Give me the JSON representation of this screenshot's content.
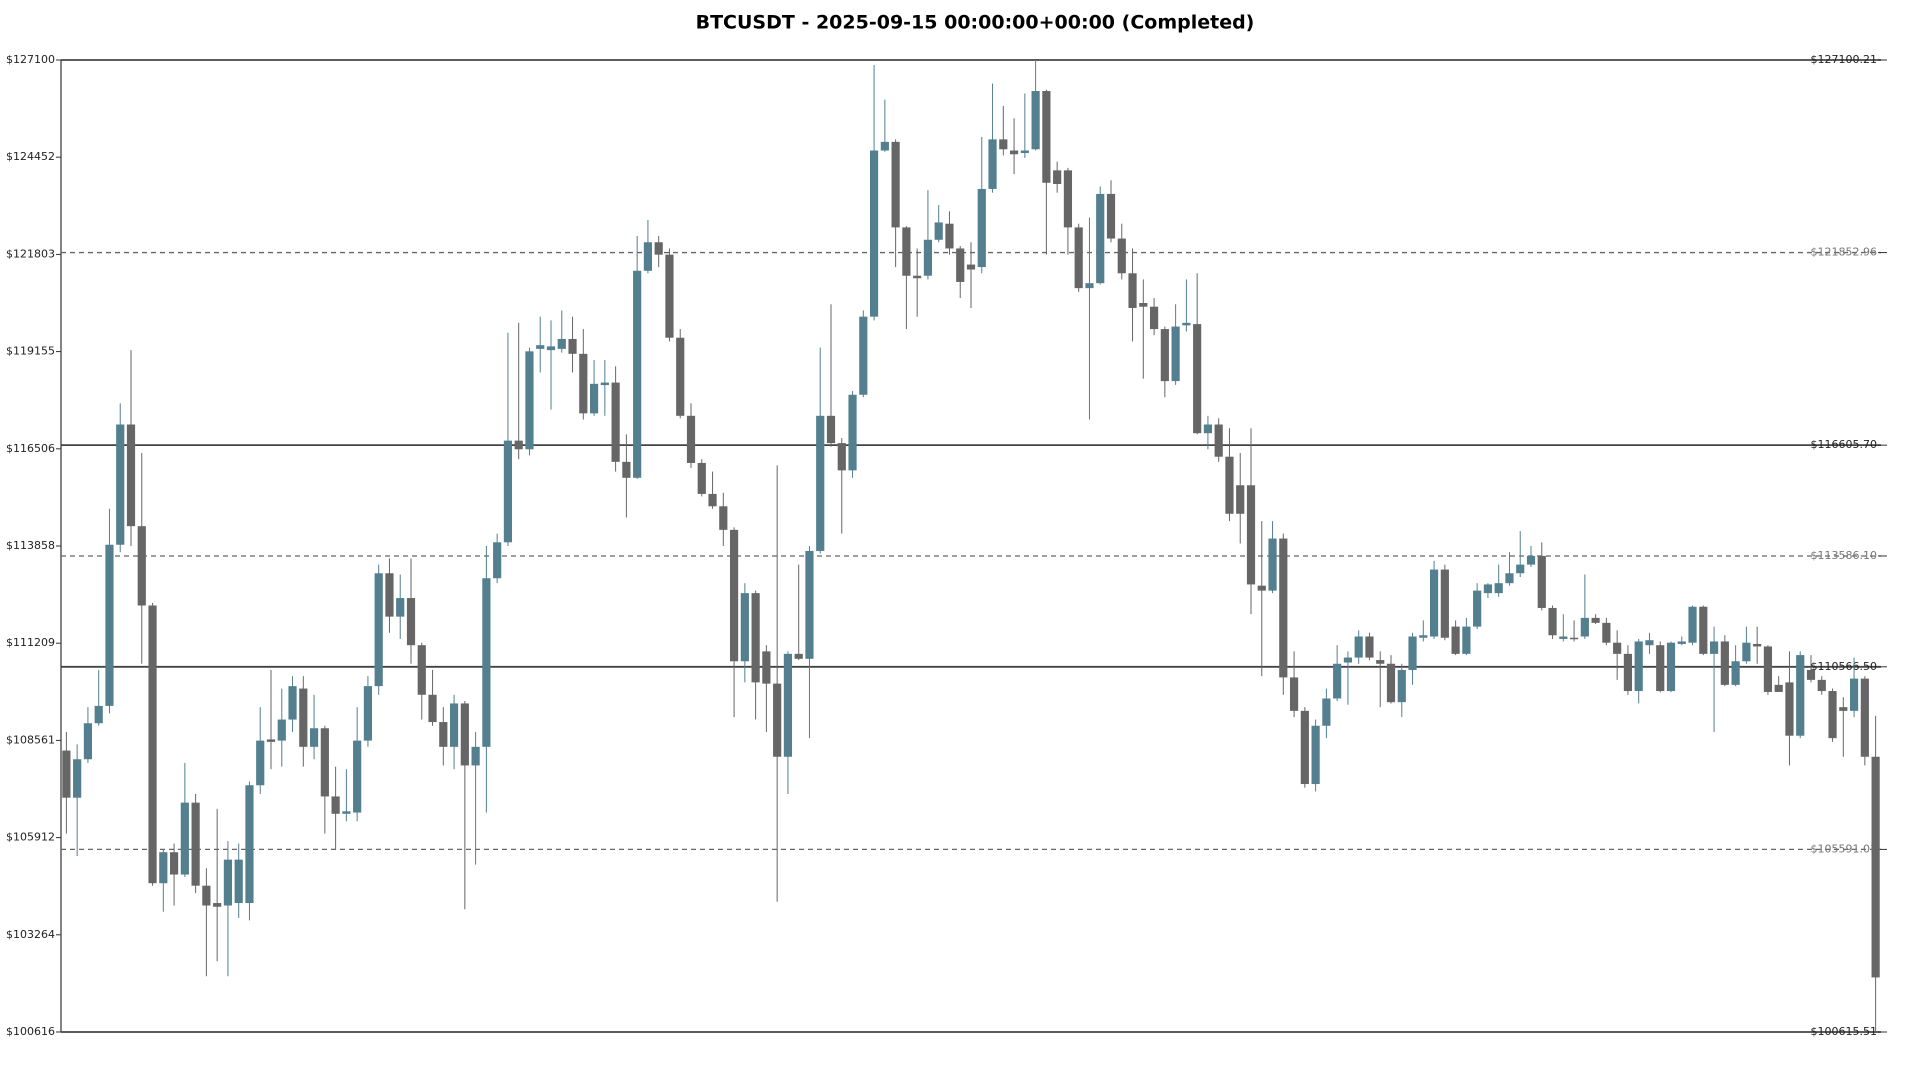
{
  "chart_data": {
    "type": "candlestick",
    "title": "BTCUSDT - 2025-09-15 00:00:00+00:00 (Completed)",
    "up_color": "#537f8f",
    "down_color": "#666666",
    "ylim": [
      100615.51,
      127100.21
    ],
    "yticks": [
      {
        "value": 127100,
        "label": "$127100"
      },
      {
        "value": 124452,
        "label": "$124452"
      },
      {
        "value": 121803,
        "label": "$121803"
      },
      {
        "value": 119155,
        "label": "$119155"
      },
      {
        "value": 116506,
        "label": "$116506"
      },
      {
        "value": 113858,
        "label": "$113858"
      },
      {
        "value": 111209,
        "label": "$111209"
      },
      {
        "value": 108561,
        "label": "$108561"
      },
      {
        "value": 105912,
        "label": "$105912"
      },
      {
        "value": 103264,
        "label": "$103264"
      },
      {
        "value": 100616,
        "label": "$100616"
      }
    ],
    "levels": [
      {
        "value": 127100.21,
        "label": "$127100.21",
        "style": "solid"
      },
      {
        "value": 121852.96,
        "label": "$121852.96",
        "style": "dashed"
      },
      {
        "value": 116605.7,
        "label": "$116605.70",
        "style": "solid"
      },
      {
        "value": 113586.1,
        "label": "$113586.10",
        "style": "dashed"
      },
      {
        "value": 110566.5,
        "label": "$110566.50",
        "style": "solid"
      },
      {
        "value": 105591.01,
        "label": "$105591.01",
        "style": "dashed"
      },
      {
        "value": 100615.51,
        "label": "$100615.51",
        "style": "solid"
      }
    ],
    "candles": [
      [
        108284,
        108791,
        106021,
        107000
      ],
      [
        107000,
        108453,
        105413,
        108048
      ],
      [
        108048,
        109467,
        107947,
        109028
      ],
      [
        109028,
        110480,
        108960,
        109501
      ],
      [
        109501,
        114872,
        109298,
        113892
      ],
      [
        113892,
        117743,
        113689,
        117168
      ],
      [
        117168,
        119195,
        113858,
        114398
      ],
      [
        114398,
        116391,
        110649,
        112237
      ],
      [
        112237,
        112305,
        104602,
        104670
      ],
      [
        104670,
        105582,
        103893,
        105514
      ],
      [
        105514,
        105751,
        104062,
        104906
      ],
      [
        104906,
        107946,
        104839,
        106865
      ],
      [
        106865,
        107102,
        104400,
        104602
      ],
      [
        104602,
        105075,
        102135,
        104062
      ],
      [
        104129,
        106696,
        102542,
        104028
      ],
      [
        104062,
        105818,
        102135,
        105312
      ],
      [
        104129,
        105751,
        103724,
        105312
      ],
      [
        104129,
        107440,
        103657,
        107339
      ],
      [
        107339,
        109467,
        107102,
        108555
      ],
      [
        108588,
        110480,
        107777,
        108521
      ],
      [
        108555,
        109974,
        107845,
        109129
      ],
      [
        109129,
        110311,
        108791,
        110040
      ],
      [
        109974,
        110311,
        107845,
        108386
      ],
      [
        108386,
        109804,
        108048,
        108892
      ],
      [
        108892,
        108960,
        106021,
        107034
      ],
      [
        107034,
        107845,
        105582,
        106561
      ],
      [
        106561,
        107777,
        106358,
        106629
      ],
      [
        106595,
        109467,
        106358,
        108555
      ],
      [
        108555,
        110311,
        108386,
        110040
      ],
      [
        110040,
        113351,
        109804,
        113115
      ],
      [
        113115,
        113520,
        111493,
        111933
      ],
      [
        111933,
        113081,
        111325,
        112439
      ],
      [
        112439,
        113520,
        110649,
        111155
      ],
      [
        111155,
        111223,
        109129,
        109804
      ],
      [
        109804,
        110480,
        108960,
        109061
      ],
      [
        109061,
        109467,
        107879,
        108386
      ],
      [
        108386,
        109804,
        107777,
        109568
      ],
      [
        109568,
        109636,
        103960,
        107879
      ],
      [
        107879,
        108791,
        105177,
        108386
      ],
      [
        108386,
        113858,
        106595,
        112980
      ],
      [
        112980,
        114196,
        112845,
        113959
      ],
      [
        113959,
        119668,
        113858,
        116729
      ],
      [
        116729,
        119938,
        116223,
        116493
      ],
      [
        116493,
        119263,
        116324,
        119162
      ],
      [
        119229,
        120107,
        118587,
        119330
      ],
      [
        119195,
        120006,
        117574,
        119297
      ],
      [
        119229,
        120276,
        119128,
        119499
      ],
      [
        119499,
        120107,
        118587,
        119094
      ],
      [
        119094,
        119769,
        117303,
        117472
      ],
      [
        117472,
        118925,
        117405,
        118277
      ],
      [
        118243,
        118925,
        117405,
        118311
      ],
      [
        118311,
        118756,
        115885,
        116151
      ],
      [
        116151,
        116898,
        114635,
        115716
      ],
      [
        115716,
        122303,
        115682,
        121357
      ],
      [
        121357,
        122742,
        121289,
        122134
      ],
      [
        122134,
        122303,
        121458,
        121796
      ],
      [
        121796,
        121965,
        119432,
        119533
      ],
      [
        119533,
        119769,
        117338,
        117405
      ],
      [
        117405,
        117743,
        115986,
        116121
      ],
      [
        116121,
        116223,
        115209,
        115277
      ],
      [
        115277,
        115885,
        114872,
        114940
      ],
      [
        114940,
        115310,
        113858,
        114298
      ],
      [
        114298,
        114366,
        109196,
        110717
      ],
      [
        110717,
        112845,
        110142,
        112574
      ],
      [
        112574,
        112642,
        109129,
        110142
      ],
      [
        110987,
        111155,
        108791,
        110108
      ],
      [
        110108,
        116054,
        104163,
        108115
      ],
      [
        108115,
        110987,
        107102,
        110919
      ],
      [
        110919,
        113351,
        110750,
        110784
      ],
      [
        110784,
        113858,
        108622,
        113723
      ],
      [
        113723,
        119263,
        113655,
        117405
      ],
      [
        117405,
        120445,
        116561,
        116662
      ],
      [
        116662,
        116797,
        114196,
        115919
      ],
      [
        115919,
        118080,
        115716,
        117979
      ],
      [
        117979,
        120276,
        117912,
        120107
      ],
      [
        120107,
        126965,
        120006,
        124634
      ],
      [
        124634,
        126019,
        124600,
        124870
      ],
      [
        124870,
        124938,
        121458,
        122539
      ],
      [
        122539,
        122573,
        119769,
        121222
      ],
      [
        121222,
        121965,
        120107,
        121154
      ],
      [
        121222,
        123553,
        121121,
        122202
      ],
      [
        122202,
        123147,
        122134,
        122674
      ],
      [
        122640,
        122978,
        121796,
        121965
      ],
      [
        121965,
        122033,
        120614,
        121053
      ],
      [
        121526,
        122134,
        120344,
        121391
      ],
      [
        121458,
        125005,
        121289,
        123587
      ],
      [
        123587,
        126458,
        123485,
        124938
      ],
      [
        124938,
        125850,
        124499,
        124668
      ],
      [
        124634,
        125512,
        123992,
        124532
      ],
      [
        124566,
        126188,
        124431,
        124634
      ],
      [
        124668,
        127100,
        124634,
        126255
      ],
      [
        126255,
        126289,
        121796,
        123755
      ],
      [
        124093,
        124330,
        123485,
        123722
      ],
      [
        124093,
        124161,
        121796,
        122539
      ],
      [
        122539,
        122640,
        120783,
        120884
      ],
      [
        120884,
        122809,
        117303,
        121019
      ],
      [
        121019,
        123654,
        120985,
        123451
      ],
      [
        123451,
        123823,
        122134,
        122235
      ],
      [
        122235,
        122640,
        121121,
        121289
      ],
      [
        121289,
        121965,
        119432,
        120344
      ],
      [
        120479,
        121121,
        118418,
        120378
      ],
      [
        120378,
        120614,
        119600,
        119769
      ],
      [
        119769,
        119837,
        117912,
        118351
      ],
      [
        118351,
        120445,
        118249,
        119837
      ],
      [
        119870,
        121121,
        119702,
        119938
      ],
      [
        119904,
        121289,
        116898,
        116932
      ],
      [
        116932,
        117405,
        116493,
        117168
      ],
      [
        117168,
        117338,
        116151,
        116291
      ],
      [
        116291,
        117067,
        114534,
        114736
      ],
      [
        115513,
        116391,
        113926,
        114736
      ],
      [
        115513,
        117067,
        112001,
        112811
      ],
      [
        112777,
        114534,
        110311,
        112642
      ],
      [
        112642,
        114534,
        112574,
        114061
      ],
      [
        114061,
        114196,
        109804,
        110277
      ],
      [
        110277,
        110987,
        109196,
        109366
      ],
      [
        109366,
        109467,
        107271,
        107372
      ],
      [
        107372,
        109129,
        107170,
        108960
      ],
      [
        108960,
        109974,
        108622,
        109703
      ],
      [
        109703,
        111155,
        109636,
        110649
      ],
      [
        110683,
        110987,
        109534,
        110818
      ],
      [
        110818,
        111561,
        110649,
        111392
      ],
      [
        111392,
        111493,
        110750,
        110818
      ],
      [
        110750,
        110987,
        109467,
        110649
      ],
      [
        110649,
        110885,
        109568,
        109602
      ],
      [
        109602,
        110649,
        109196,
        110480
      ],
      [
        110480,
        111493,
        110075,
        111392
      ],
      [
        111358,
        111831,
        111257,
        111426
      ],
      [
        111392,
        113452,
        111325,
        113216
      ],
      [
        113216,
        113351,
        111291,
        111358
      ],
      [
        111662,
        111831,
        110885,
        110919
      ],
      [
        110919,
        111899,
        110885,
        111662
      ],
      [
        111662,
        112845,
        111595,
        112642
      ],
      [
        112574,
        112845,
        112439,
        112811
      ],
      [
        112574,
        113351,
        112473,
        112845
      ],
      [
        112845,
        113689,
        112777,
        113115
      ],
      [
        113115,
        114263,
        113014,
        113351
      ],
      [
        113351,
        113858,
        113284,
        113588
      ],
      [
        113588,
        113959,
        112102,
        112170
      ],
      [
        112170,
        112237,
        111325,
        111426
      ],
      [
        111325,
        112000,
        111257,
        111392
      ],
      [
        111358,
        111831,
        111257,
        111325
      ],
      [
        111392,
        113081,
        111325,
        111899
      ],
      [
        111899,
        112000,
        111730,
        111764
      ],
      [
        111764,
        111899,
        111155,
        111223
      ],
      [
        111223,
        111561,
        110210,
        110919
      ],
      [
        110919,
        111155,
        109804,
        109906
      ],
      [
        109906,
        111325,
        109568,
        111257
      ],
      [
        111155,
        111493,
        110919,
        111291
      ],
      [
        111155,
        111257,
        109872,
        109906
      ],
      [
        109906,
        111257,
        109872,
        111223
      ],
      [
        111189,
        111392,
        111155,
        111257
      ],
      [
        111223,
        112237,
        111155,
        112203
      ],
      [
        112203,
        112237,
        110885,
        110919
      ],
      [
        110919,
        111662,
        108791,
        111257
      ],
      [
        111257,
        111426,
        110040,
        110074
      ],
      [
        110074,
        111155,
        110040,
        110717
      ],
      [
        110717,
        111662,
        110649,
        111223
      ],
      [
        111189,
        111662,
        110649,
        111121
      ],
      [
        111121,
        111155,
        109804,
        109881
      ],
      [
        110074,
        110311,
        109906,
        109881
      ],
      [
        110142,
        110987,
        107879,
        108689
      ],
      [
        108689,
        110987,
        108622,
        110885
      ],
      [
        110480,
        110885,
        110142,
        110210
      ],
      [
        110210,
        110311,
        109804,
        109906
      ],
      [
        109906,
        109974,
        108521,
        108622
      ],
      [
        109467,
        109737,
        108115,
        109366
      ],
      [
        109366,
        110818,
        109196,
        110244
      ],
      [
        110244,
        110311,
        107879,
        108115
      ],
      [
        108115,
        109230,
        100616,
        102102
      ]
    ]
  }
}
